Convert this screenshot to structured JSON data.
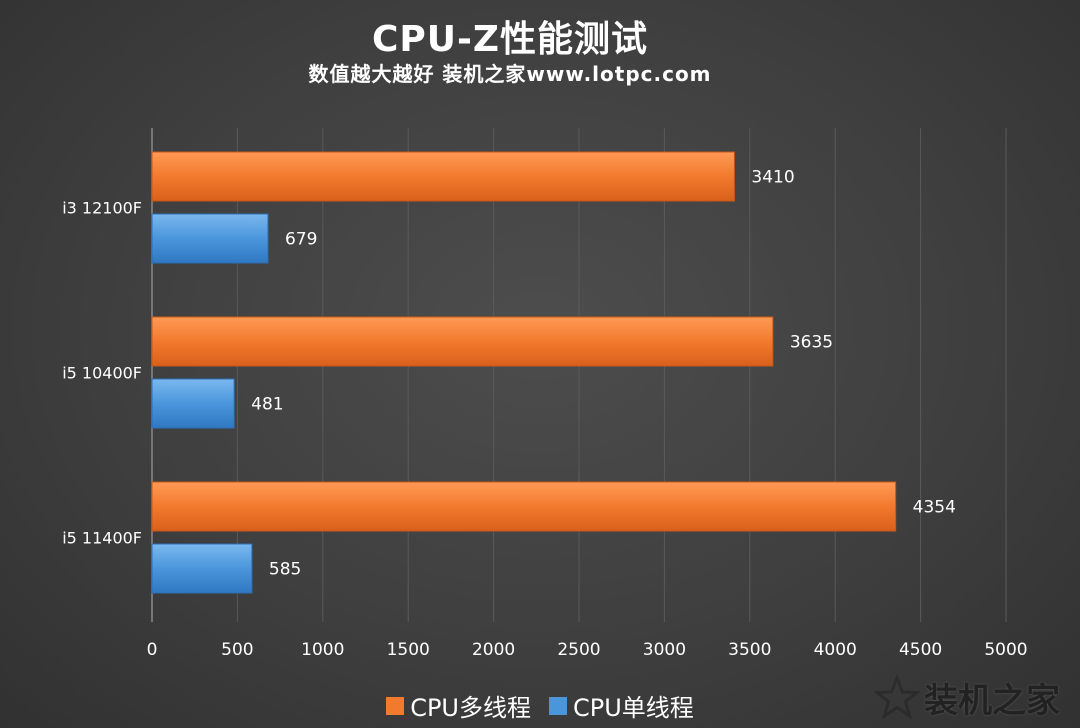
{
  "title": "CPU-Z性能测试",
  "subtitle": "数值越大越好 装机之家www.lotpc.com",
  "watermark": "装机之家",
  "colors": {
    "multi": "#f27a2e",
    "single": "#4a96dc",
    "grid": "#5a5a5a",
    "text": "#ffffff"
  },
  "legend": {
    "multi_label": "CPU多线程",
    "single_label": "CPU单线程"
  },
  "chart_data": {
    "type": "bar",
    "orientation": "horizontal",
    "categories": [
      "i3 12100F",
      "i5 10400F",
      "i5 11400F"
    ],
    "series": [
      {
        "name": "CPU多线程",
        "values": [
          3410,
          3635,
          4354
        ]
      },
      {
        "name": "CPU单线程",
        "values": [
          679,
          481,
          585
        ]
      }
    ],
    "xlim": [
      0,
      5000
    ],
    "x_ticks": [
      0,
      500,
      1000,
      1500,
      2000,
      2500,
      3000,
      3500,
      4000,
      4500,
      5000
    ],
    "grid": true,
    "legend_position": "bottom",
    "data_labels": true
  }
}
